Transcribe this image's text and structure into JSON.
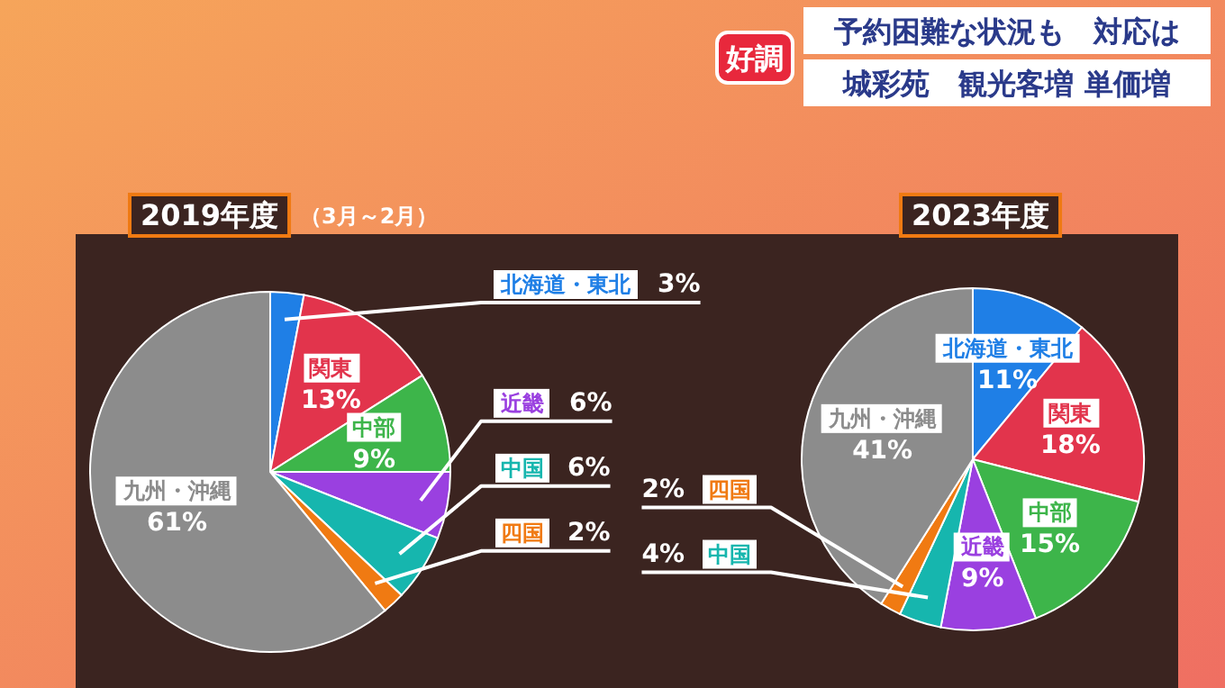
{
  "chart_data": [
    {
      "type": "other",
      "annotations": [
        "好調",
        "予約困難な状況も　対応は",
        "城彩苑　観光客増 単価増"
      ]
    },
    {
      "type": "pie",
      "title": "2019年度",
      "subtitle": "（3月～2月）",
      "value_labels": [
        "3%",
        "13%",
        "9%",
        "6%",
        "6%",
        "2%",
        "61%"
      ],
      "categories": [
        "北海道・東北",
        "関東",
        "中部",
        "近畿",
        "中国",
        "四国",
        "九州・沖縄"
      ],
      "values": [
        3,
        13,
        9,
        6,
        6,
        2,
        61
      ],
      "colors": [
        "#1f7fe6",
        "#e2344c",
        "#3db54a",
        "#9a40e0",
        "#16b6ae",
        "#f07a12",
        "#8c8c8c"
      ]
    },
    {
      "type": "pie",
      "title": "2023年度",
      "value_labels": [
        "11%",
        "18%",
        "15%",
        "9%",
        "4%",
        "2%",
        "41%"
      ],
      "categories": [
        "北海道・東北",
        "関東",
        "中部",
        "近畿",
        "中国",
        "四国",
        "九州・沖縄"
      ],
      "values": [
        11,
        18,
        15,
        9,
        4,
        2,
        41
      ],
      "colors": [
        "#1f7fe6",
        "#e2344c",
        "#3db54a",
        "#9a40e0",
        "#16b6ae",
        "#f07a12",
        "#8c8c8c"
      ]
    }
  ]
}
